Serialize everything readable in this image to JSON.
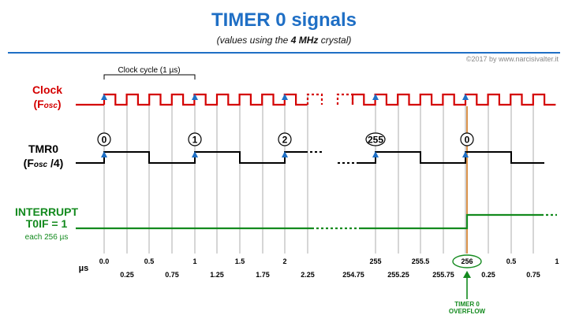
{
  "header": {
    "title": "TIMER 0 signals",
    "subtitle_before": "(values using the ",
    "subtitle_bold": "4 MHz",
    "subtitle_after": " crystal)",
    "credit": "©2017 by www.narcisivalter.it"
  },
  "signals": {
    "clock": {
      "name": "Clock",
      "sub": "(F",
      "sub_index": "osc",
      "sub_end": ")",
      "color": "#d40000"
    },
    "tmr0": {
      "name": "TMR0",
      "sub": "(F",
      "sub_index": "osc",
      "sub_end": " /4)",
      "color": "#000000"
    },
    "interrupt": {
      "name": "INTERRUPT",
      "flag": "T0IF = 1",
      "note": "each 256 µs",
      "color": "#138a1e"
    }
  },
  "clock_cycle_label": "Clock cycle (1 µs)",
  "counter_values": [
    "0",
    "1",
    "2",
    "255",
    "0"
  ],
  "axis": {
    "unit": "µs",
    "upper_ticks": [
      "0.0",
      "0.5",
      "1",
      "1.5",
      "2",
      "255",
      "255.5",
      "256",
      "0.5",
      "1"
    ],
    "lower_ticks": [
      "0.25",
      "0.75",
      "1.25",
      "1.75",
      "2.25",
      "254.75",
      "255.25",
      "255.75",
      "0.25",
      "0.75"
    ],
    "highlight": "256"
  },
  "overflow_label": [
    "TIMER 0",
    "OVERFLOW"
  ],
  "colors": {
    "accent": "#1f6fc5",
    "clock": "#d40000",
    "interrupt": "#138a1e",
    "overflow_line": "#d2781e"
  }
}
